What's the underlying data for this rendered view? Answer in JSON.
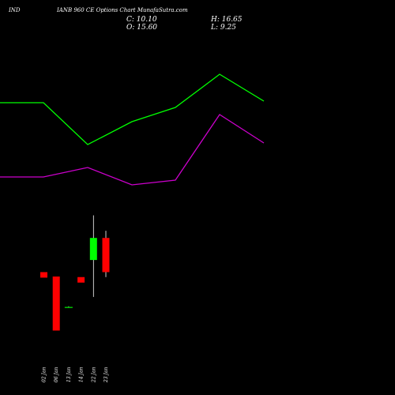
{
  "header": {
    "symbol": "IND",
    "subtitle": "IANB 960  CE Options  Chart MunafaSutra.com",
    "close_label": "C: 10.10",
    "open_label": "O: 15.60",
    "high_label": "H: 16.65",
    "low_label": "L: 9.25"
  },
  "chart_data": {
    "type": "candlestick",
    "categories": [
      "02 Jan",
      "06 Jan",
      "13 Jan",
      "14 Jan",
      "22 Jan",
      "23 Jan"
    ],
    "candles": [
      {
        "open": 11.5,
        "close": 11.0,
        "high": 11.5,
        "low": 11.0,
        "color": "#ff0000"
      },
      {
        "open": 11.1,
        "close": 6.2,
        "high": 11.1,
        "low": 6.2,
        "color": "#ff0000"
      },
      {
        "open": 8.3,
        "close": 8.35,
        "high": 8.4,
        "low": 8.3,
        "color": "#00c000"
      },
      {
        "open": 11.05,
        "close": 10.55,
        "high": 11.05,
        "low": 10.55,
        "color": "#ff0000"
      },
      {
        "open": 12.6,
        "close": 14.6,
        "high": 16.65,
        "low": 9.25,
        "color": "#00ff00"
      },
      {
        "open": 14.6,
        "close": 11.5,
        "high": 15.25,
        "low": 11.05,
        "color": "#ff0000"
      }
    ],
    "overlays": [
      {
        "color": "#00ff00",
        "values": [
          130,
          130,
          183,
          154,
          136,
          94,
          128
        ]
      },
      {
        "color": "#cc00cc",
        "values": [
          224,
          224,
          212,
          234,
          228,
          145,
          181
        ]
      }
    ],
    "ylim": [
      5,
      20
    ],
    "colors": {
      "background": "#000000",
      "up": "#00ff00",
      "down": "#ff0000",
      "wick": "#ffffff"
    }
  }
}
